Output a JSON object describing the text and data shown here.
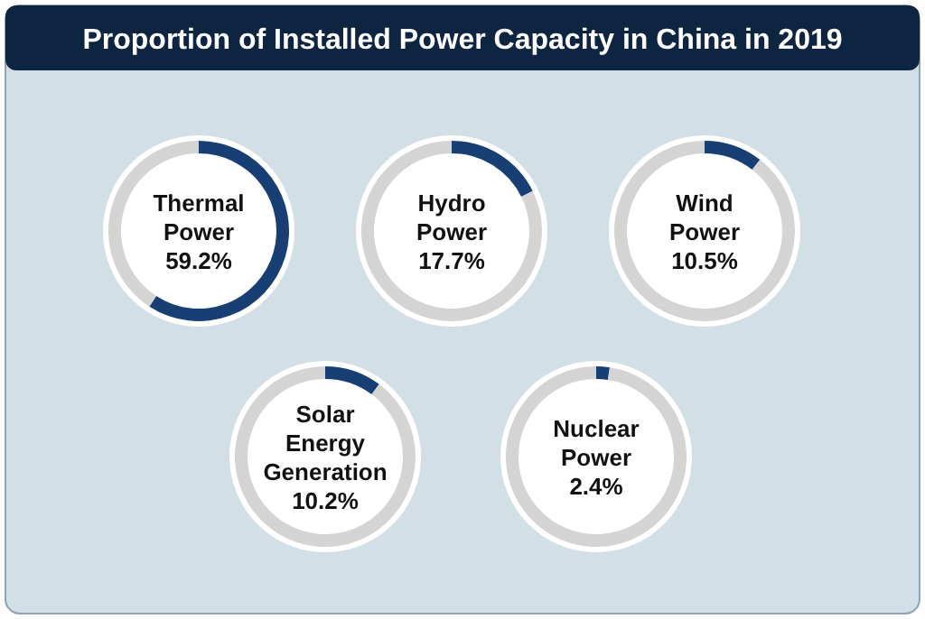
{
  "chart_data": [
    {
      "type": "donut",
      "title": "Proportion of Installed Power Capacity in China in 2019",
      "categories": [
        "Thermal Power",
        null
      ],
      "values": [
        59.2,
        40.8
      ],
      "colors": [
        "#183f73",
        "#d4d4d4"
      ],
      "value_labels": [
        "59.2%",
        null
      ]
    },
    {
      "type": "donut",
      "categories": [
        "Hydro Power",
        null
      ],
      "values": [
        17.7,
        82.3
      ],
      "colors": [
        "#183f73",
        "#d4d4d4"
      ],
      "value_labels": [
        "17.7%",
        null
      ]
    },
    {
      "type": "donut",
      "categories": [
        "Wind Power",
        null
      ],
      "values": [
        10.5,
        89.5
      ],
      "colors": [
        "#183f73",
        "#d4d4d4"
      ],
      "value_labels": [
        "10.5%",
        null
      ]
    },
    {
      "type": "donut",
      "categories": [
        "Solar Energy Generation",
        null
      ],
      "values": [
        10.2,
        89.8
      ],
      "colors": [
        "#183f73",
        "#d4d4d4"
      ],
      "value_labels": [
        "10.2%",
        null
      ]
    },
    {
      "type": "donut",
      "categories": [
        "Nuclear Power",
        null
      ],
      "values": [
        2.4,
        97.6
      ],
      "colors": [
        "#183f73",
        "#d4d4d4"
      ],
      "value_labels": [
        "2.4%",
        null
      ]
    }
  ]
}
